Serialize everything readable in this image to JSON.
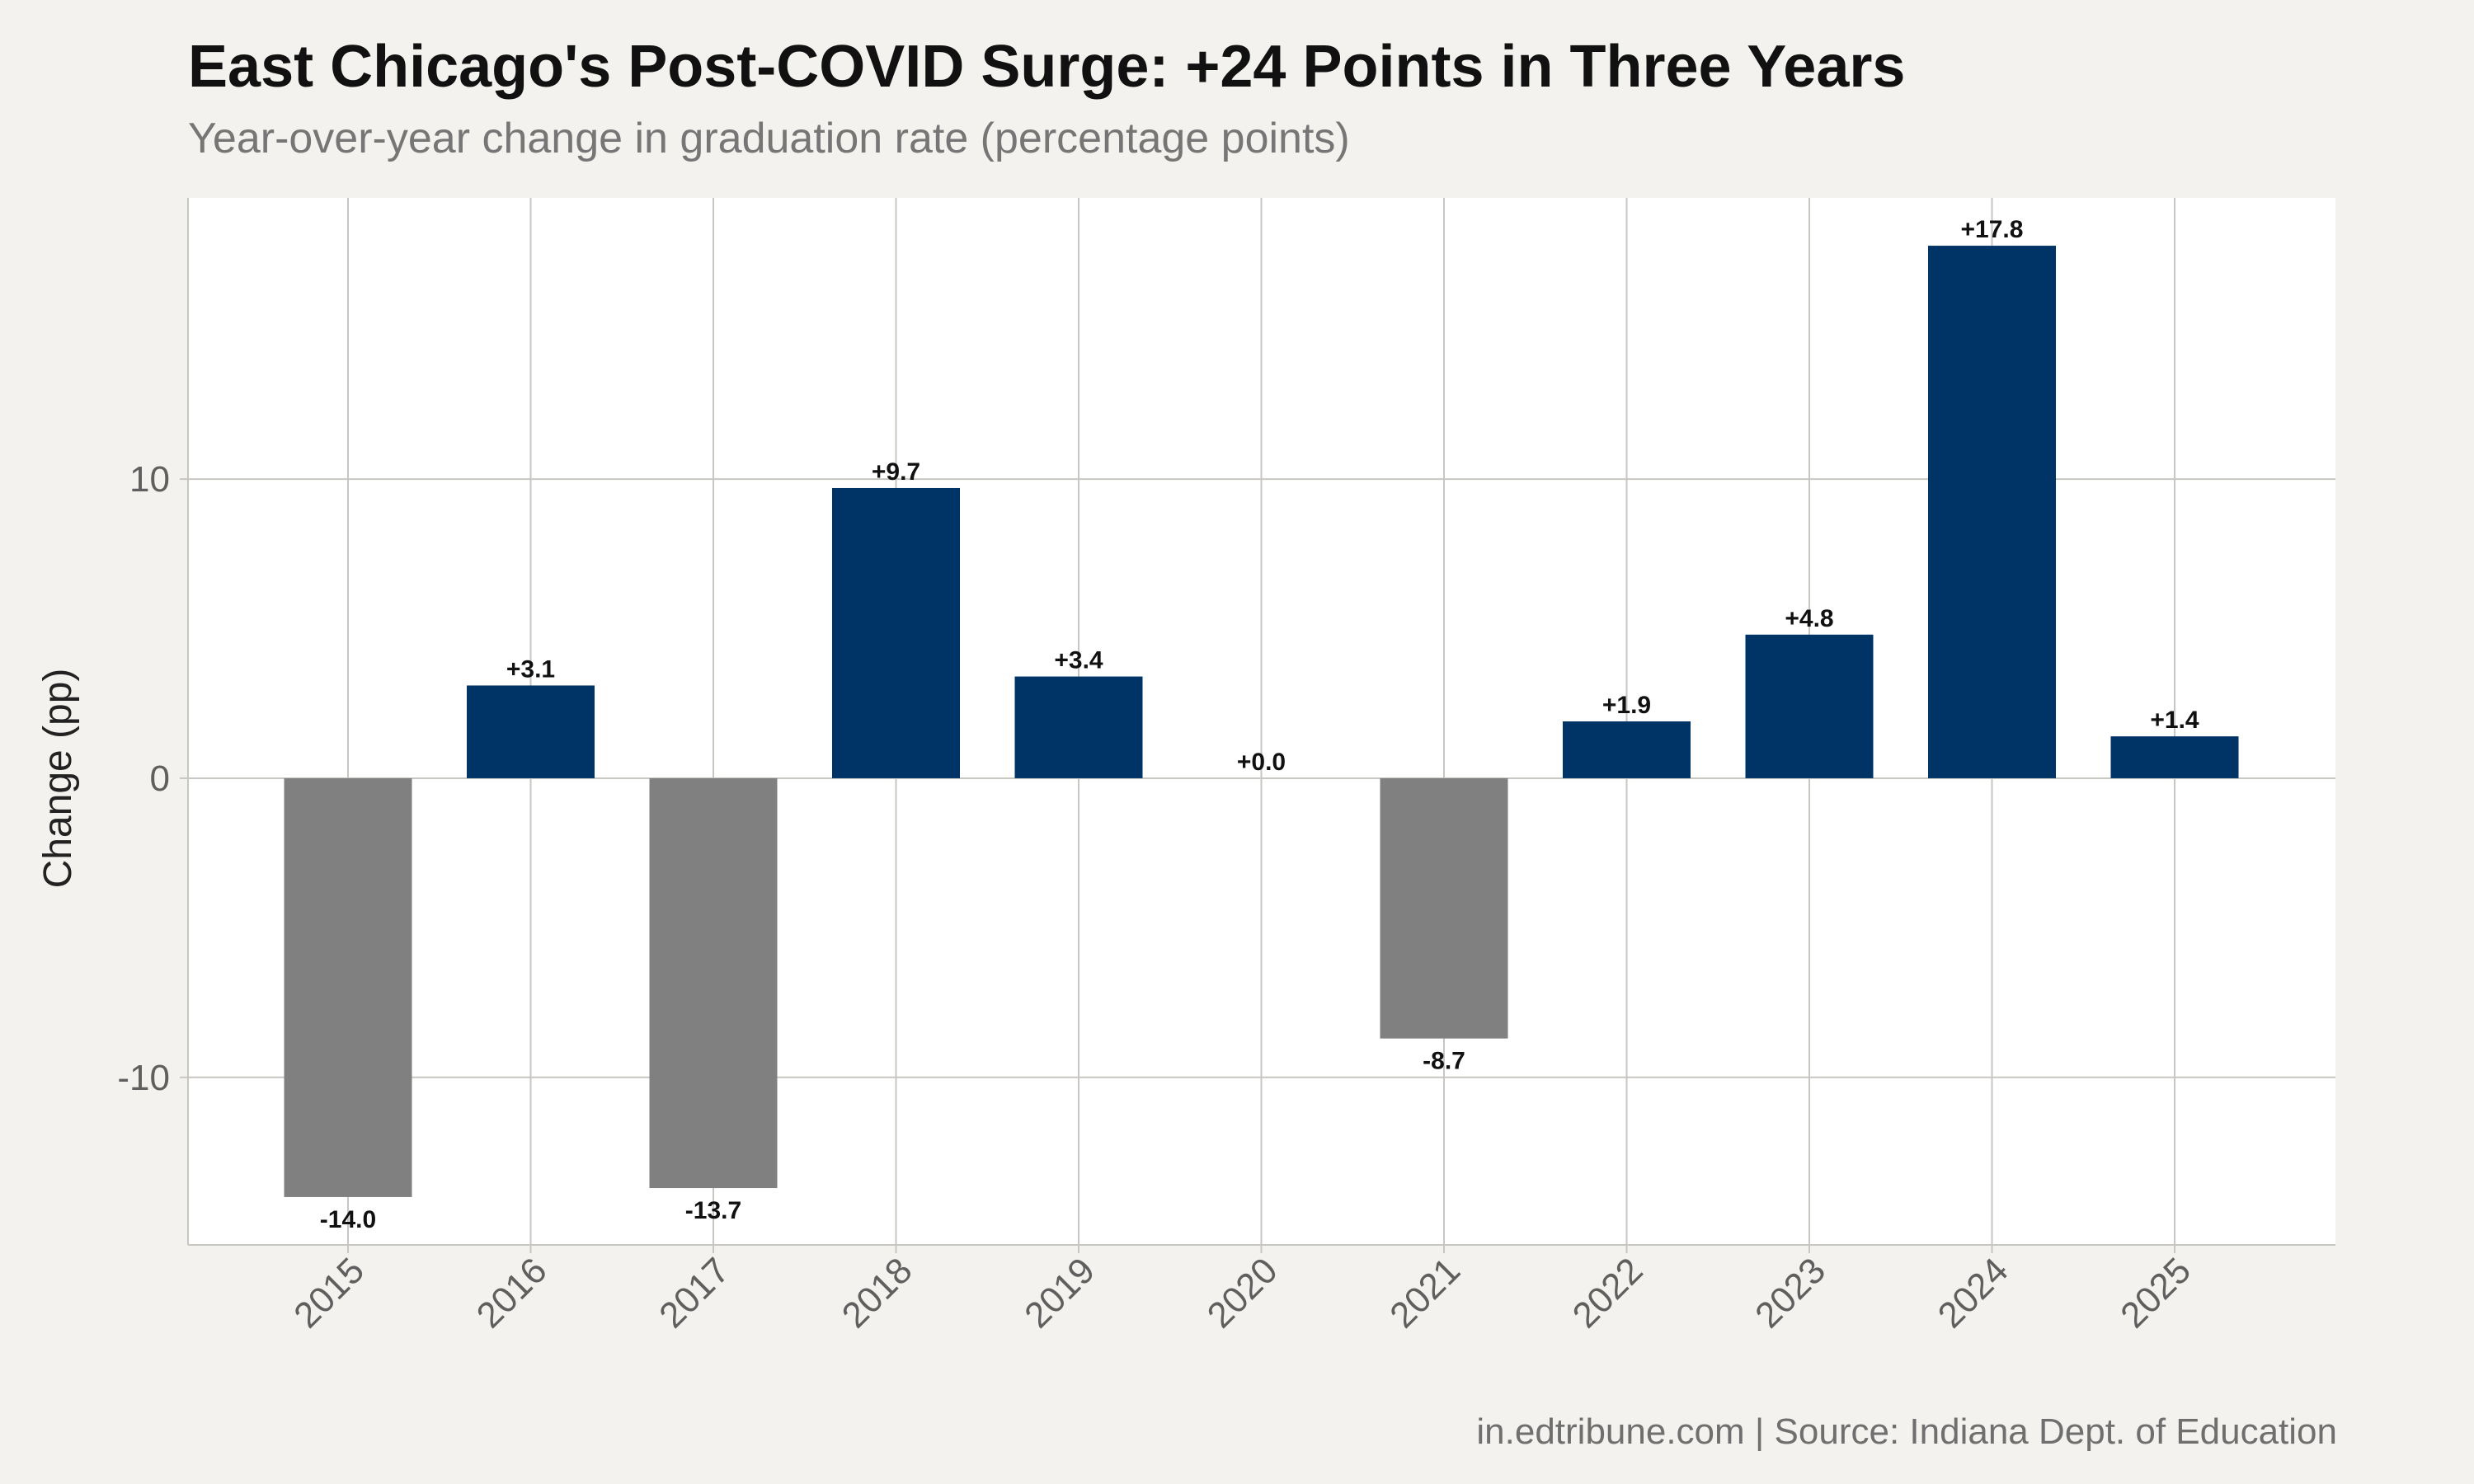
{
  "chart_data": {
    "type": "bar",
    "title": "East Chicago's Post-COVID Surge: +24 Points in Three Years",
    "subtitle": "Year-over-year change in graduation rate (percentage points)",
    "caption": "in.edtribune.com | Source: Indiana Dept. of Education",
    "xlabel": "",
    "ylabel": "Change (pp)",
    "categories": [
      "2015",
      "2016",
      "2017",
      "2018",
      "2019",
      "2020",
      "2021",
      "2022",
      "2023",
      "2024",
      "2025"
    ],
    "values": [
      -14.0,
      3.1,
      -13.7,
      9.7,
      3.4,
      0.0,
      -8.7,
      1.9,
      4.8,
      17.8,
      1.4
    ],
    "data_labels": [
      "-14.0",
      "+3.1",
      "-13.7",
      "+9.7",
      "+3.4",
      "+0.0",
      "-8.7",
      "+1.9",
      "+4.8",
      "+17.8",
      "+1.4"
    ],
    "y_ticks": [
      -10,
      0,
      10
    ],
    "y_tick_labels": [
      "-10",
      "0",
      "10"
    ],
    "ylim": [
      -15.6,
      19.4
    ],
    "grid": true,
    "legend": "none",
    "colors": {
      "positive": "#003366",
      "negative": "#808080",
      "plot_background": "#FFFFFF",
      "page_background": "#F4F2EE",
      "grid": "#C8C6C0"
    }
  }
}
